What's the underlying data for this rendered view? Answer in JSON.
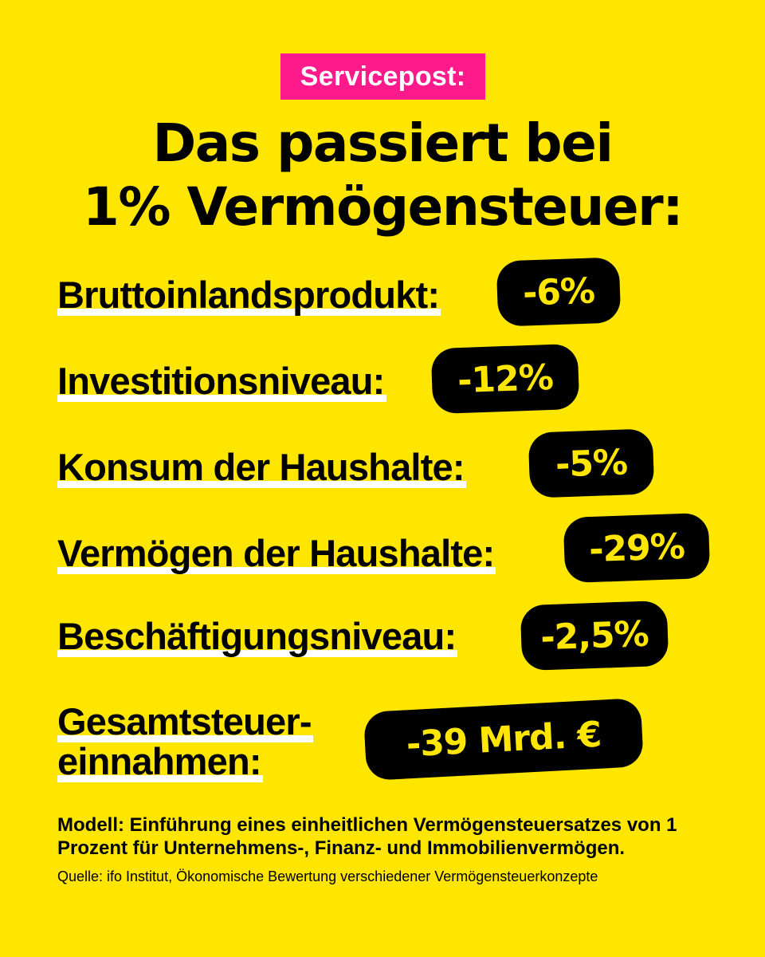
{
  "tag": "Servicepost:",
  "headline": [
    "Das passiert bei",
    "1% Vermögensteuer:"
  ],
  "items": [
    {
      "label": "Bruttoinlandsprodukt:",
      "value": "-6%"
    },
    {
      "label": "Investitionsniveau:",
      "value": "-12%"
    },
    {
      "label": "Konsum der Haushalte:",
      "value": "-5%"
    },
    {
      "label": "Vermögen der Haushalte:",
      "value": "-29%"
    },
    {
      "label": "Beschäftigungsniveau:",
      "value": "-2,5%"
    },
    {
      "label_lines": [
        "Gesamtsteuer-",
        "einnahmen:"
      ],
      "value": "-39 Mrd. €"
    }
  ],
  "footnote": "Modell: Einführung eines einheitlichen Vermögensteuersatzes von 1 Prozent für Unternehmens-, Finanz- und Immobilienvermögen.",
  "source": "Quelle: ifo Institut, Ökonomische Bewertung verschiedener Vermögensteuerkonzepte",
  "colors": {
    "background": "#FFE600",
    "tag": "#FF1A8C",
    "pill": "#000000",
    "pill_text": "#FFE600",
    "underline": "#FFFFFF"
  }
}
